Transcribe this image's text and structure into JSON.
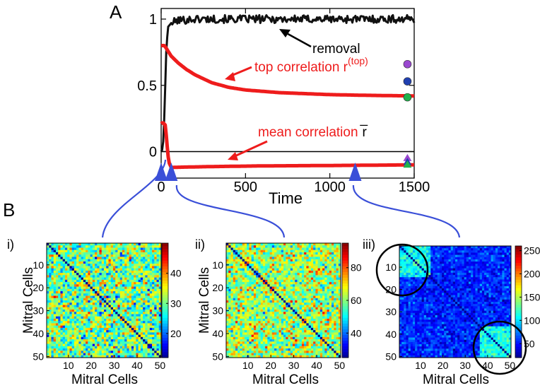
{
  "panel_labels": {
    "a": "A",
    "b": "B"
  },
  "colors": {
    "black": "#111111",
    "red": "#ee1c1c",
    "blue": "#3a4fd8",
    "purple": "#9a48d0",
    "navy": "#2040b0",
    "green": "#22b14c"
  },
  "chart_data": [
    {
      "type": "line",
      "panel": "A",
      "xlabel": "Time",
      "ylabel": "",
      "xlim": [
        0,
        1500
      ],
      "ylim": [
        -0.2,
        1.08
      ],
      "xticks": [
        0,
        500,
        1000,
        1500
      ],
      "yticks": [
        0,
        0.5,
        1
      ],
      "xtick_labels": [
        "0",
        "500",
        "1000",
        "1500"
      ],
      "ytick_labels": [
        "0",
        "0.5",
        "1"
      ],
      "zero_line": 0,
      "series": [
        {
          "name": "removal",
          "color": "#111111",
          "x": [
            0,
            10,
            20,
            30,
            40,
            60,
            100,
            200,
            400,
            700,
            1000,
            1300,
            1500
          ],
          "y": [
            0,
            0.02,
            0.3,
            0.75,
            0.94,
            0.97,
            0.99,
            1.0,
            1.0,
            1.0,
            1.0,
            1.0,
            1.0
          ],
          "noise": 0.03
        },
        {
          "name": "top correlation",
          "color": "#ee1c1c",
          "x": [
            0,
            20,
            40,
            60,
            100,
            150,
            200,
            300,
            400,
            500,
            700,
            1000,
            1200,
            1500
          ],
          "y": [
            0.8,
            0.8,
            0.76,
            0.72,
            0.67,
            0.62,
            0.58,
            0.52,
            0.485,
            0.465,
            0.445,
            0.43,
            0.425,
            0.42
          ]
        },
        {
          "name": "mean correlation",
          "color": "#ee1c1c",
          "x": [
            0,
            10,
            25,
            35,
            45,
            60,
            100,
            300,
            600,
            1000,
            1500
          ],
          "y": [
            0.21,
            0.22,
            0.2,
            0.05,
            -0.08,
            -0.12,
            -0.118,
            -0.113,
            -0.108,
            -0.105,
            -0.1
          ]
        }
      ],
      "end_markers": [
        {
          "x": 1460,
          "y": 0.66,
          "shape": "circle",
          "color": "#9a48d0"
        },
        {
          "x": 1460,
          "y": 0.53,
          "shape": "circle",
          "color": "#2040b0"
        },
        {
          "x": 1460,
          "y": 0.41,
          "shape": "circle",
          "color": "#22b14c"
        },
        {
          "x": 1460,
          "y": -0.05,
          "shape": "triangle",
          "color": "#9a48d0"
        },
        {
          "x": 1460,
          "y": -0.08,
          "shape": "triangle",
          "color": "#2040b0"
        },
        {
          "x": 1460,
          "y": -0.1,
          "shape": "triangle",
          "color": "#22b14c"
        }
      ],
      "snapshot_markers": [
        0,
        60,
        1150
      ],
      "annotations": [
        {
          "text": "removal",
          "target_series": "removal"
        },
        {
          "text": "top correlation r",
          "superscript": "(top)",
          "target_series": "top correlation"
        },
        {
          "text": "mean correlation",
          "symbol": "r̅",
          "target_series": "mean correlation"
        }
      ]
    },
    {
      "type": "heatmap",
      "panel": "i)",
      "label": "i)",
      "xlabel": "Mitral Cells",
      "ylabel": "Mitral Cells",
      "size": 50,
      "xticks": [
        10,
        20,
        30,
        40,
        50
      ],
      "yticks": [
        10,
        20,
        30,
        40,
        50
      ],
      "colorbar_ticks": [
        20,
        30,
        40
      ],
      "vmin": 12,
      "vmax": 50,
      "mean": 30,
      "spread": 9,
      "diag_value": 12,
      "seed": 11
    },
    {
      "type": "heatmap",
      "panel": "ii)",
      "label": "ii)",
      "xlabel": "Mitral Cells",
      "ylabel": "Mitral Cells",
      "size": 50,
      "xticks": [
        10,
        20,
        30,
        40,
        50
      ],
      "yticks": [
        10,
        20,
        30,
        40,
        50
      ],
      "colorbar_ticks": [
        40,
        60,
        80
      ],
      "vmin": 25,
      "vmax": 95,
      "mean": 62,
      "spread": 15,
      "diag_value": 25,
      "seed": 23
    },
    {
      "type": "heatmap",
      "panel": "iii)",
      "label": "iii)",
      "xlabel": "Mitral Cells",
      "ylabel": "",
      "size": 50,
      "xticks": [
        10,
        20,
        30,
        40,
        50
      ],
      "yticks": [
        10,
        20,
        30,
        40,
        50
      ],
      "colorbar_ticks": [
        50,
        100,
        150,
        200,
        250
      ],
      "vmin": 20,
      "vmax": 260,
      "mean": 55,
      "spread": 22,
      "diag_value": 20,
      "seed": 37,
      "clusters": [
        [
          1,
          14
        ],
        [
          37,
          50
        ]
      ],
      "cluster_mean": 110
    }
  ]
}
